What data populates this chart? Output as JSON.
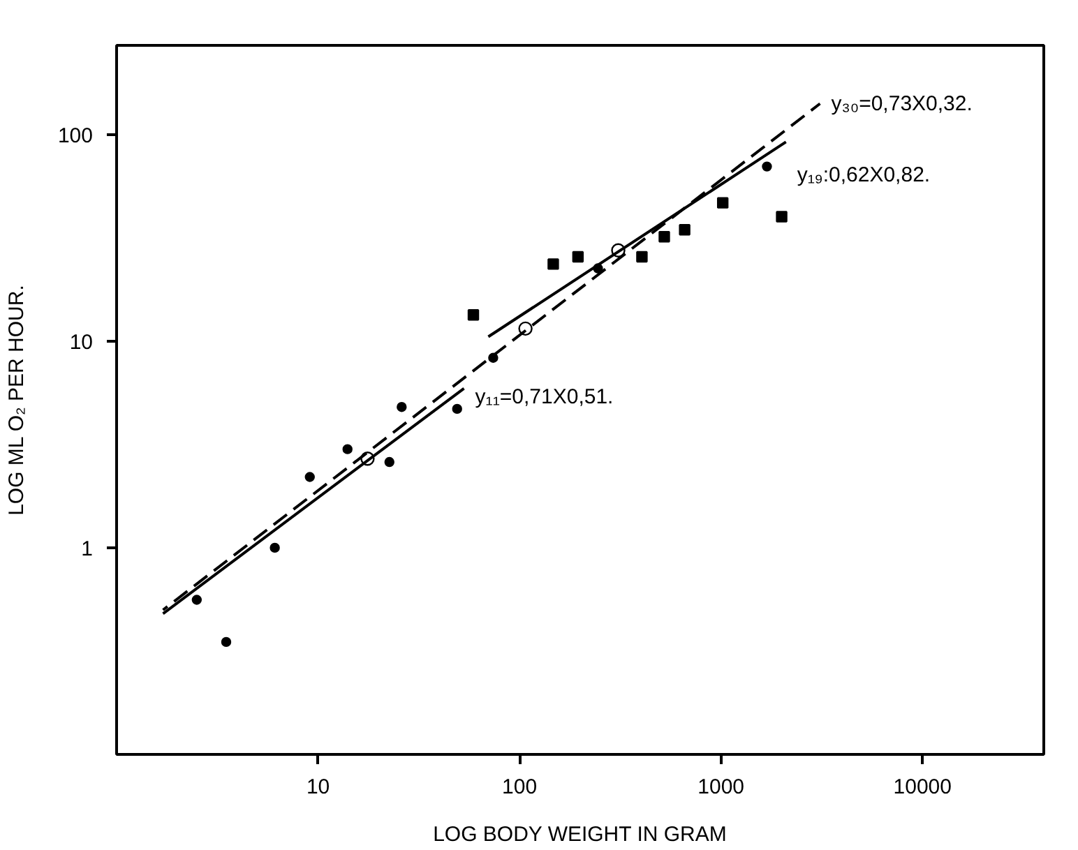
{
  "chart_data": {
    "type": "scatter",
    "xlabel": "LOG BODY WEIGHT IN GRAM",
    "ylabel": "LOG ML O₂ PER HOUR.",
    "log": "xy",
    "grid": false,
    "xlim": [
      1,
      40000
    ],
    "ylim": [
      0.1,
      270
    ],
    "xticks": [
      10,
      100,
      1000,
      10000
    ],
    "yticks": [
      1,
      10,
      100
    ],
    "series": [
      {
        "marker": "circle",
        "color": "#000000",
        "x": [
          2.5,
          3.5,
          6.1,
          9.1,
          14,
          22.6,
          26,
          49,
          74,
          245,
          1690
        ],
        "values": [
          0.56,
          0.35,
          1.0,
          2.2,
          3.0,
          2.6,
          4.8,
          4.7,
          8.3,
          22.5,
          70
        ]
      },
      {
        "marker": "square",
        "color": "#000000",
        "x": [
          59,
          147,
          195,
          405,
          523,
          660,
          1020,
          2000
        ],
        "values": [
          13.4,
          23.6,
          25.6,
          25.6,
          32,
          34.6,
          46.7,
          40
        ]
      },
      {
        "marker": "open_circle",
        "color": "#000000",
        "x": [
          17.6,
          107,
          309
        ],
        "values": [
          2.7,
          11.5,
          27.5
        ]
      },
      {
        "type": "line",
        "name": "y₁₁=0,71X0,51.",
        "line_style": "solid",
        "color": "#000000",
        "x": [
          1.7,
          53
        ],
        "values": [
          0.48,
          5.9
        ]
      },
      {
        "type": "line",
        "name": "y₁₉:0,62X0,82.",
        "line_style": "solid",
        "color": "#000000",
        "x": [
          70,
          2100
        ],
        "values": [
          10.5,
          92
        ]
      },
      {
        "type": "line",
        "name": "y₃₀=0,73X0,32.",
        "line_style": "dashed",
        "color": "#000000",
        "x": [
          1.7,
          3100
        ],
        "values": [
          0.5,
          141
        ]
      }
    ]
  }
}
